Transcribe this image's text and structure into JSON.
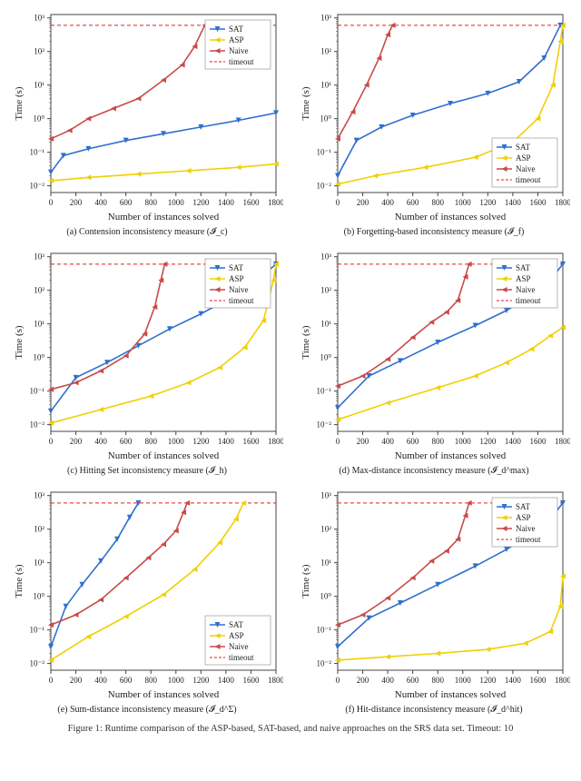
{
  "colors": {
    "sat": "#2e6fcf",
    "asp": "#f0d000",
    "naive": "#c94a4a",
    "timeout": "#e02020",
    "axis": "#444444",
    "grid": "#ffffff",
    "background": "#ffffff",
    "text": "#222222"
  },
  "figure_caption": "Figure 1: Runtime comparison of the ASP-based, SAT-based, and naive approaches on the SRS data set. Timeout: 10",
  "legend": {
    "items": [
      {
        "label": "SAT",
        "type": "line-marker",
        "marker": "down",
        "color_key": "sat"
      },
      {
        "label": "ASP",
        "type": "line-marker",
        "marker": "left",
        "color_key": "asp"
      },
      {
        "label": "Naive",
        "type": "line-marker",
        "marker": "left",
        "color_key": "naive"
      },
      {
        "label": "timeout",
        "type": "dashed",
        "color_key": "timeout"
      }
    ],
    "fontsize": 9
  },
  "axes": {
    "xlabel": "Number of instances solved",
    "ylabel": "Time (s)",
    "label_fontsize": 11,
    "tick_fontsize": 9,
    "xlim": [
      0,
      1800
    ],
    "xticks": [
      0,
      200,
      400,
      600,
      800,
      1000,
      1200,
      1400,
      1600,
      1800
    ],
    "ylim_log": [
      -2.2,
      3.1
    ],
    "yticks_log": [
      -2,
      -1,
      0,
      1,
      2,
      3
    ],
    "ytick_labels": [
      "10⁻²",
      "10⁻¹",
      "10⁰",
      "10¹",
      "10²",
      "10³"
    ],
    "scale": "log"
  },
  "timeout_log": 2.78,
  "marker_size": 3,
  "line_width": 1.6,
  "panels": [
    {
      "id": "a",
      "caption_html": "(a) Contension inconsistency measure (𝓘_c)",
      "legend_pos": "upper-right",
      "series": {
        "sat": [
          [
            0,
            -1.6
          ],
          [
            100,
            -1.1
          ],
          [
            300,
            -0.9
          ],
          [
            600,
            -0.65
          ],
          [
            900,
            -0.45
          ],
          [
            1200,
            -0.25
          ],
          [
            1500,
            -0.05
          ],
          [
            1800,
            0.17
          ]
        ],
        "asp": [
          [
            0,
            -1.85
          ],
          [
            300,
            -1.75
          ],
          [
            700,
            -1.65
          ],
          [
            1100,
            -1.55
          ],
          [
            1500,
            -1.45
          ],
          [
            1800,
            -1.35
          ]
        ],
        "naive": [
          [
            0,
            -0.6
          ],
          [
            150,
            -0.35
          ],
          [
            300,
            0.0
          ],
          [
            500,
            0.3
          ],
          [
            700,
            0.6
          ],
          [
            900,
            1.15
          ],
          [
            1050,
            1.6
          ],
          [
            1150,
            2.15
          ],
          [
            1230,
            2.78
          ]
        ]
      }
    },
    {
      "id": "b",
      "caption_html": "(b) Forgetting-based inconsistency measure (𝓘_f)",
      "legend_pos": "lower-right",
      "series": {
        "sat": [
          [
            0,
            -1.7
          ],
          [
            150,
            -0.65
          ],
          [
            350,
            -0.25
          ],
          [
            600,
            0.1
          ],
          [
            900,
            0.45
          ],
          [
            1200,
            0.75
          ],
          [
            1450,
            1.1
          ],
          [
            1650,
            1.8
          ],
          [
            1780,
            2.78
          ]
        ],
        "asp": [
          [
            0,
            -1.95
          ],
          [
            300,
            -1.7
          ],
          [
            700,
            -1.45
          ],
          [
            1100,
            -1.15
          ],
          [
            1400,
            -0.7
          ],
          [
            1600,
            0.0
          ],
          [
            1720,
            1.0
          ],
          [
            1780,
            2.3
          ],
          [
            1800,
            2.78
          ]
        ],
        "naive": [
          [
            0,
            -0.6
          ],
          [
            120,
            0.2
          ],
          [
            230,
            1.0
          ],
          [
            330,
            1.8
          ],
          [
            400,
            2.5
          ],
          [
            440,
            2.78
          ]
        ]
      }
    },
    {
      "id": "c",
      "caption_html": "(c) Hitting Set inconsistency measure (𝓘_h)",
      "legend_pos": "upper-right",
      "series": {
        "sat": [
          [
            0,
            -1.6
          ],
          [
            200,
            -0.6
          ],
          [
            450,
            -0.15
          ],
          [
            700,
            0.35
          ],
          [
            950,
            0.85
          ],
          [
            1200,
            1.3
          ],
          [
            1450,
            1.8
          ],
          [
            1650,
            2.3
          ],
          [
            1800,
            2.78
          ]
        ],
        "asp": [
          [
            0,
            -1.95
          ],
          [
            400,
            -1.55
          ],
          [
            800,
            -1.15
          ],
          [
            1100,
            -0.75
          ],
          [
            1350,
            -0.3
          ],
          [
            1550,
            0.3
          ],
          [
            1700,
            1.1
          ],
          [
            1780,
            2.3
          ],
          [
            1800,
            2.78
          ]
        ],
        "naive": [
          [
            0,
            -0.95
          ],
          [
            200,
            -0.75
          ],
          [
            400,
            -0.4
          ],
          [
            600,
            0.05
          ],
          [
            750,
            0.7
          ],
          [
            830,
            1.5
          ],
          [
            880,
            2.3
          ],
          [
            910,
            2.78
          ]
        ]
      }
    },
    {
      "id": "d",
      "caption_html": "(d) Max-distance inconsistency measure (𝓘_d^max)",
      "legend_pos": "upper-right",
      "series": {
        "sat": [
          [
            0,
            -1.5
          ],
          [
            250,
            -0.55
          ],
          [
            500,
            -0.1
          ],
          [
            800,
            0.45
          ],
          [
            1100,
            0.95
          ],
          [
            1350,
            1.4
          ],
          [
            1550,
            1.85
          ],
          [
            1700,
            2.3
          ],
          [
            1800,
            2.78
          ]
        ],
        "asp": [
          [
            0,
            -1.85
          ],
          [
            400,
            -1.35
          ],
          [
            800,
            -0.9
          ],
          [
            1100,
            -0.55
          ],
          [
            1350,
            -0.15
          ],
          [
            1550,
            0.25
          ],
          [
            1700,
            0.65
          ],
          [
            1800,
            0.9
          ]
        ],
        "naive": [
          [
            0,
            -0.85
          ],
          [
            200,
            -0.55
          ],
          [
            400,
            -0.05
          ],
          [
            600,
            0.6
          ],
          [
            750,
            1.05
          ],
          [
            870,
            1.35
          ],
          [
            960,
            1.7
          ],
          [
            1020,
            2.4
          ],
          [
            1050,
            2.78
          ]
        ]
      }
    },
    {
      "id": "e",
      "caption_html": "(e) Sum-distance inconsistency measure (𝓘_d^Σ)",
      "legend_pos": "lower-right",
      "series": {
        "sat": [
          [
            0,
            -1.5
          ],
          [
            120,
            -0.3
          ],
          [
            250,
            0.35
          ],
          [
            400,
            1.05
          ],
          [
            530,
            1.7
          ],
          [
            630,
            2.35
          ],
          [
            700,
            2.78
          ]
        ],
        "asp": [
          [
            0,
            -1.9
          ],
          [
            300,
            -1.2
          ],
          [
            600,
            -0.6
          ],
          [
            900,
            0.05
          ],
          [
            1150,
            0.8
          ],
          [
            1350,
            1.6
          ],
          [
            1480,
            2.3
          ],
          [
            1540,
            2.78
          ]
        ],
        "naive": [
          [
            0,
            -0.85
          ],
          [
            200,
            -0.55
          ],
          [
            400,
            -0.1
          ],
          [
            600,
            0.55
          ],
          [
            780,
            1.15
          ],
          [
            900,
            1.55
          ],
          [
            1000,
            1.95
          ],
          [
            1060,
            2.5
          ],
          [
            1090,
            2.78
          ]
        ]
      }
    },
    {
      "id": "f",
      "caption_html": "(f) Hit-distance inconsistency measure (𝓘_d^hit)",
      "legend_pos": "upper-right",
      "series": {
        "sat": [
          [
            0,
            -1.5
          ],
          [
            250,
            -0.65
          ],
          [
            500,
            -0.2
          ],
          [
            800,
            0.35
          ],
          [
            1100,
            0.9
          ],
          [
            1350,
            1.4
          ],
          [
            1550,
            1.85
          ],
          [
            1700,
            2.3
          ],
          [
            1800,
            2.78
          ]
        ],
        "asp": [
          [
            0,
            -1.9
          ],
          [
            400,
            -1.8
          ],
          [
            800,
            -1.7
          ],
          [
            1200,
            -1.58
          ],
          [
            1500,
            -1.4
          ],
          [
            1700,
            -1.05
          ],
          [
            1780,
            -0.3
          ],
          [
            1800,
            0.6
          ]
        ],
        "naive": [
          [
            0,
            -0.85
          ],
          [
            200,
            -0.55
          ],
          [
            400,
            -0.05
          ],
          [
            600,
            0.55
          ],
          [
            750,
            1.05
          ],
          [
            870,
            1.35
          ],
          [
            960,
            1.7
          ],
          [
            1020,
            2.4
          ],
          [
            1050,
            2.78
          ]
        ]
      }
    }
  ]
}
